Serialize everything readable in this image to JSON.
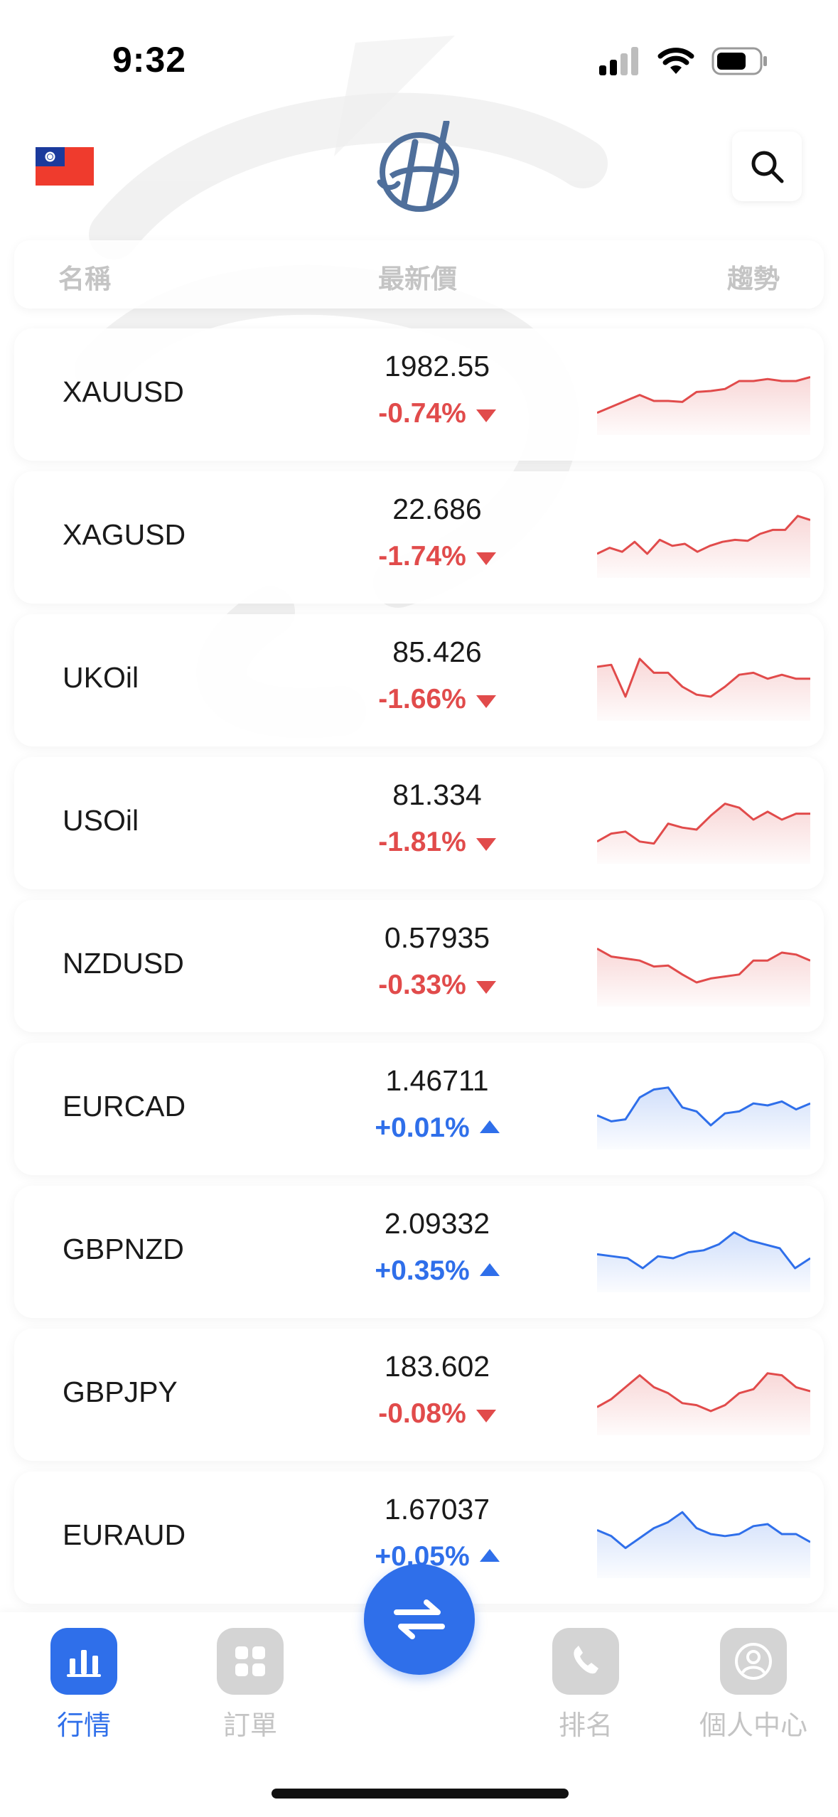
{
  "status_bar": {
    "time": "9:32"
  },
  "header": {
    "logo_icon": "h-globe-logo-icon",
    "flag_icon": "taiwan-flag-icon",
    "search_icon": "search-icon"
  },
  "columns": {
    "name": "名稱",
    "price": "最新價",
    "trend": "趨勢"
  },
  "colors": {
    "down": "#e14b4b",
    "up": "#2f6fea",
    "accent": "#2f6fea"
  },
  "quotes": [
    {
      "symbol": "XAUUSD",
      "price": "1982.55",
      "change": "-0.74%",
      "direction": "down",
      "trend": [
        18,
        24,
        30,
        36,
        30,
        30,
        29,
        39,
        40,
        42,
        50,
        50,
        52,
        50,
        50,
        54
      ]
    },
    {
      "symbol": "XAGUSD",
      "price": "22.686",
      "change": "-1.74%",
      "direction": "down",
      "trend": [
        20,
        26,
        22,
        32,
        20,
        34,
        28,
        30,
        22,
        28,
        32,
        34,
        33,
        40,
        44,
        44,
        58,
        54
      ]
    },
    {
      "symbol": "UKOil",
      "price": "85.426",
      "change": "-1.66%",
      "direction": "down",
      "trend": [
        50,
        52,
        20,
        58,
        44,
        44,
        30,
        22,
        20,
        30,
        42,
        44,
        38,
        42,
        38,
        38
      ]
    },
    {
      "symbol": "USOil",
      "price": "81.334",
      "change": "-1.81%",
      "direction": "down",
      "trend": [
        18,
        26,
        28,
        18,
        16,
        36,
        32,
        30,
        44,
        56,
        52,
        40,
        48,
        40,
        46,
        46
      ]
    },
    {
      "symbol": "NZDUSD",
      "price": "0.57935",
      "change": "-0.33%",
      "direction": "down",
      "trend": [
        54,
        46,
        44,
        42,
        36,
        37,
        28,
        20,
        24,
        26,
        28,
        42,
        42,
        50,
        48,
        42
      ]
    },
    {
      "symbol": "EURCAD",
      "price": "1.46711",
      "change": "+0.01%",
      "direction": "up",
      "trend": [
        30,
        24,
        26,
        48,
        56,
        58,
        38,
        34,
        20,
        32,
        34,
        42,
        40,
        44,
        36,
        42
      ]
    },
    {
      "symbol": "GBPNZD",
      "price": "2.09332",
      "change": "+0.35%",
      "direction": "up",
      "trend": [
        34,
        32,
        30,
        20,
        32,
        30,
        36,
        38,
        44,
        56,
        48,
        44,
        40,
        20,
        30
      ]
    },
    {
      "symbol": "GBPJPY",
      "price": "183.602",
      "change": "-0.08%",
      "direction": "down",
      "trend": [
        24,
        32,
        44,
        56,
        44,
        38,
        28,
        26,
        20,
        26,
        38,
        42,
        58,
        56,
        44,
        40
      ]
    },
    {
      "symbol": "EURAUD",
      "price": "1.67037",
      "change": "+0.05%",
      "direction": "up",
      "trend": [
        44,
        38,
        26,
        36,
        46,
        52,
        62,
        46,
        40,
        38,
        40,
        48,
        50,
        40,
        40,
        32
      ]
    }
  ],
  "nav": [
    {
      "label": "行情",
      "icon": "market-chart-icon",
      "active": true
    },
    {
      "label": "訂單",
      "icon": "orders-grid-icon",
      "active": false
    },
    {
      "label": "排名",
      "icon": "ranking-phone-icon",
      "active": false
    },
    {
      "label": "個人中心",
      "icon": "profile-person-icon",
      "active": false
    }
  ],
  "fab": {
    "icon": "swap-arrows-icon"
  }
}
